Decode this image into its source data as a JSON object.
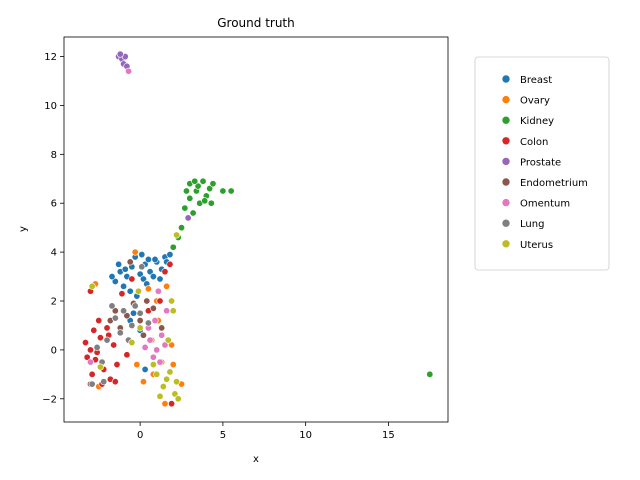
{
  "chart_data": {
    "type": "scatter",
    "title": "Ground truth",
    "xlabel": "x",
    "ylabel": "y",
    "xlim": [
      -4.6,
      18.6
    ],
    "ylim": [
      -2.95,
      12.8
    ],
    "xticks": [
      0,
      5,
      10,
      15
    ],
    "yticks": [
      -2,
      0,
      2,
      4,
      6,
      8,
      10,
      12
    ],
    "grid": false,
    "legend_position": "right",
    "series": [
      {
        "name": "Breast",
        "color": "#1f77b4",
        "points": [
          [
            -1.2,
            3.2
          ],
          [
            -0.8,
            3.0
          ],
          [
            -0.5,
            3.4
          ],
          [
            0.0,
            3.1
          ],
          [
            0.3,
            3.5
          ],
          [
            0.6,
            3.2
          ],
          [
            1.0,
            3.6
          ],
          [
            1.3,
            3.3
          ],
          [
            -1.5,
            2.8
          ],
          [
            -1.0,
            2.6
          ],
          [
            0.2,
            2.9
          ],
          [
            0.8,
            3.0
          ],
          [
            -0.3,
            3.8
          ],
          [
            0.5,
            3.7
          ],
          [
            1.5,
            3.8
          ],
          [
            -1.7,
            3.0
          ],
          [
            -0.6,
            2.4
          ],
          [
            0.1,
            3.9
          ],
          [
            1.8,
            3.9
          ],
          [
            -1.3,
            3.5
          ],
          [
            0.9,
            3.7
          ],
          [
            -0.9,
            3.3
          ],
          [
            0.4,
            2.7
          ],
          [
            1.2,
            2.9
          ],
          [
            -0.2,
            2.2
          ],
          [
            -0.4,
            1.5
          ],
          [
            0.0,
            0.8
          ],
          [
            -0.6,
            1.2
          ],
          [
            0.3,
            -0.8
          ],
          [
            1.6,
            3.6
          ]
        ]
      },
      {
        "name": "Ovary",
        "color": "#ff7f0e",
        "points": [
          [
            -0.3,
            4.0
          ],
          [
            0.5,
            2.5
          ],
          [
            1.0,
            2.0
          ],
          [
            1.6,
            2.6
          ],
          [
            -2.7,
            2.7
          ],
          [
            0.8,
            -1.0
          ],
          [
            1.3,
            -0.5
          ],
          [
            1.9,
            0.2
          ],
          [
            2.0,
            -0.6
          ],
          [
            2.5,
            -1.4
          ],
          [
            1.5,
            -2.2
          ],
          [
            0.2,
            -1.3
          ],
          [
            -0.2,
            -0.6
          ],
          [
            1.1,
            1.2
          ],
          [
            -2.5,
            -1.5
          ],
          [
            0.7,
            0.4
          ]
        ]
      },
      {
        "name": "Kidney",
        "color": "#2ca02c",
        "points": [
          [
            3.0,
            6.8
          ],
          [
            3.4,
            6.5
          ],
          [
            3.8,
            6.9
          ],
          [
            4.2,
            6.6
          ],
          [
            3.6,
            6.0
          ],
          [
            3.0,
            6.2
          ],
          [
            2.7,
            5.8
          ],
          [
            3.2,
            5.6
          ],
          [
            4.0,
            6.3
          ],
          [
            4.4,
            6.8
          ],
          [
            2.8,
            6.5
          ],
          [
            3.5,
            6.7
          ],
          [
            3.9,
            6.1
          ],
          [
            5.0,
            6.5
          ],
          [
            5.5,
            6.5
          ],
          [
            2.5,
            5.0
          ],
          [
            2.3,
            4.6
          ],
          [
            2.0,
            4.2
          ],
          [
            4.3,
            6.0
          ],
          [
            3.3,
            6.9
          ],
          [
            17.5,
            -1.0
          ]
        ]
      },
      {
        "name": "Colon",
        "color": "#d62728",
        "points": [
          [
            -3.3,
            0.3
          ],
          [
            -3.0,
            0.0
          ],
          [
            -2.7,
            -0.4
          ],
          [
            -2.4,
            0.5
          ],
          [
            -2.2,
            -0.8
          ],
          [
            -2.0,
            0.9
          ],
          [
            -1.8,
            -1.2
          ],
          [
            -1.6,
            0.2
          ],
          [
            -1.4,
            -0.6
          ],
          [
            -2.9,
            -1.0
          ],
          [
            -3.2,
            -0.3
          ],
          [
            -2.5,
            1.2
          ],
          [
            -1.9,
            0.6
          ],
          [
            -2.8,
            0.8
          ],
          [
            -1.5,
            -1.3
          ],
          [
            -2.3,
            -1.4
          ],
          [
            -3.0,
            2.4
          ],
          [
            -0.8,
            -0.2
          ],
          [
            1.8,
            3.5
          ],
          [
            1.5,
            3.2
          ],
          [
            0.5,
            1.6
          ],
          [
            1.9,
            -2.2
          ],
          [
            -0.5,
            2.9
          ],
          [
            1.2,
            2.0
          ],
          [
            -1.1,
            2.3
          ],
          [
            -2.6,
            -0.1
          ]
        ]
      },
      {
        "name": "Prostate",
        "color": "#9467bd",
        "points": [
          [
            -1.3,
            12.0
          ],
          [
            -1.1,
            11.9
          ],
          [
            -0.9,
            12.0
          ],
          [
            -1.0,
            11.7
          ],
          [
            -0.8,
            11.6
          ],
          [
            -1.2,
            12.1
          ],
          [
            2.9,
            5.4
          ]
        ]
      },
      {
        "name": "Endometrium",
        "color": "#8c564b",
        "points": [
          [
            -1.5,
            1.6
          ],
          [
            -0.8,
            1.4
          ],
          [
            0.0,
            1.2
          ],
          [
            -0.4,
            1.9
          ],
          [
            0.4,
            2.0
          ],
          [
            -1.2,
            0.9
          ],
          [
            -1.8,
            1.2
          ],
          [
            0.8,
            1.7
          ],
          [
            -3.0,
            -1.4
          ],
          [
            0.2,
            0.6
          ],
          [
            -0.6,
            3.6
          ],
          [
            1.3,
            0.9
          ]
        ]
      },
      {
        "name": "Omentum",
        "color": "#e377c2",
        "points": [
          [
            0.6,
            0.4
          ],
          [
            1.0,
            0.0
          ],
          [
            1.3,
            0.6
          ],
          [
            0.8,
            -0.3
          ],
          [
            1.5,
            0.2
          ],
          [
            0.5,
            0.9
          ],
          [
            1.2,
            -0.5
          ],
          [
            1.6,
            1.6
          ],
          [
            1.1,
            2.4
          ],
          [
            -3.0,
            -0.5
          ],
          [
            0.9,
            1.2
          ],
          [
            -0.7,
            11.4
          ],
          [
            0.3,
            0.1
          ]
        ]
      },
      {
        "name": "Lung",
        "color": "#7f7f7f",
        "points": [
          [
            -1.5,
            1.3
          ],
          [
            -1.0,
            1.6
          ],
          [
            -0.5,
            1.0
          ],
          [
            0.0,
            1.5
          ],
          [
            0.5,
            1.1
          ],
          [
            -1.2,
            0.7
          ],
          [
            -2.0,
            0.4
          ],
          [
            -2.3,
            -0.5
          ],
          [
            -2.6,
            0.1
          ],
          [
            -2.2,
            -1.3
          ],
          [
            -0.3,
            1.8
          ],
          [
            -1.7,
            1.8
          ],
          [
            0.1,
            3.4
          ],
          [
            -2.9,
            -1.4
          ],
          [
            -0.7,
            0.4
          ]
        ]
      },
      {
        "name": "Uterus",
        "color": "#bcbd22",
        "points": [
          [
            1.0,
            -1.0
          ],
          [
            1.4,
            -1.5
          ],
          [
            1.8,
            -0.9
          ],
          [
            2.1,
            -1.8
          ],
          [
            1.6,
            -1.2
          ],
          [
            2.2,
            -1.3
          ],
          [
            1.2,
            -1.9
          ],
          [
            0.8,
            -0.6
          ],
          [
            2.0,
            1.6
          ],
          [
            1.9,
            2.0
          ],
          [
            1.7,
            0.4
          ],
          [
            -0.1,
            2.4
          ],
          [
            -0.5,
            0.3
          ],
          [
            -2.9,
            2.6
          ],
          [
            2.3,
            -2.0
          ],
          [
            -2.4,
            -0.7
          ],
          [
            0.0,
            0.9
          ],
          [
            2.2,
            4.7
          ]
        ]
      }
    ]
  }
}
